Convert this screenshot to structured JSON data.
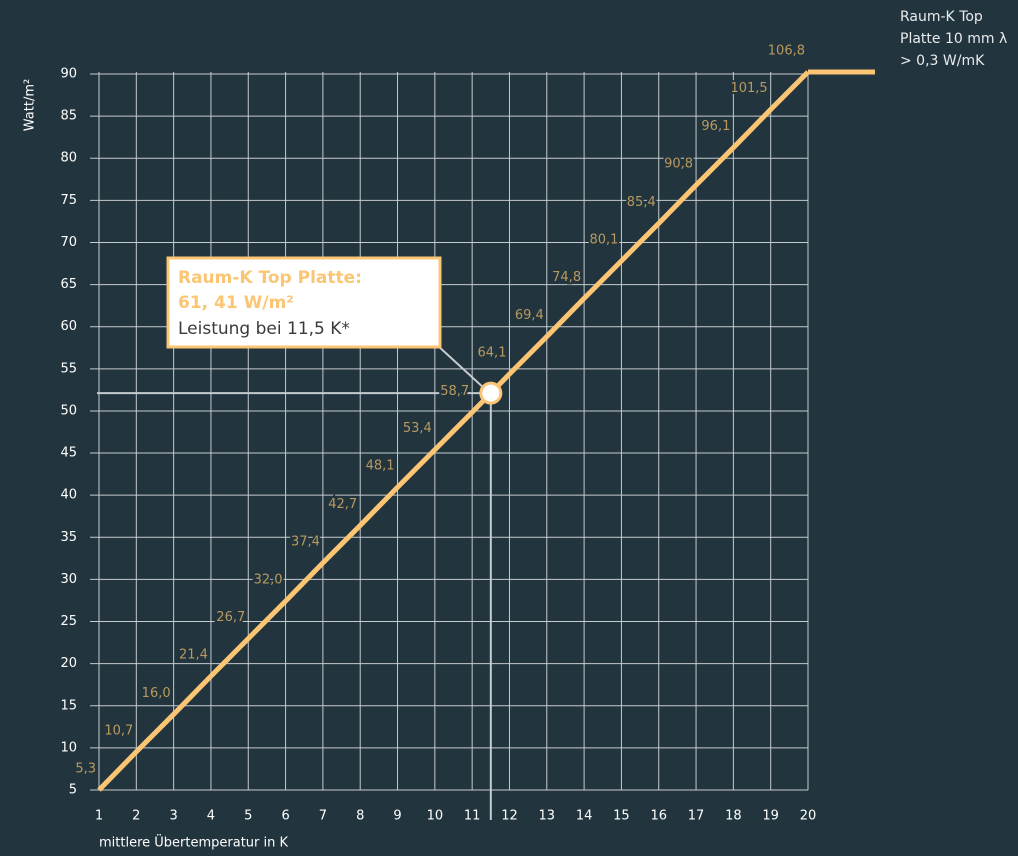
{
  "chart_data": {
    "type": "line",
    "y_label": "Watt/m²",
    "x_label": "mittlere Übertemperatur in K",
    "xlim": [
      1,
      20
    ],
    "xticks": [
      1,
      2,
      3,
      4,
      5,
      6,
      7,
      8,
      9,
      10,
      11,
      12,
      13,
      14,
      15,
      16,
      17,
      18,
      19,
      20
    ],
    "ylim": [
      5,
      90
    ],
    "yticks": [
      5,
      10,
      15,
      20,
      25,
      30,
      35,
      40,
      45,
      50,
      55,
      60,
      65,
      70,
      75,
      80,
      85,
      90
    ],
    "y2lim": [
      5.3,
      106.8
    ],
    "grid": true,
    "x": [
      1,
      2,
      3,
      4,
      5,
      6,
      7,
      8,
      9,
      10,
      11,
      12,
      13,
      14,
      15,
      16,
      17,
      18,
      19,
      20
    ],
    "series": [
      {
        "name": "Raum-K Top Platte 10 mm λ > 0,3 W/mK",
        "color": "#fbc574",
        "axis": "y2",
        "values": [
          5.3,
          10.7,
          16.0,
          21.4,
          26.7,
          32.0,
          37.4,
          42.7,
          48.1,
          53.4,
          58.7,
          64.1,
          69.4,
          74.8,
          80.1,
          85.4,
          90.8,
          96.1,
          101.5,
          106.8
        ],
        "value_labels": [
          "5,3",
          "10,7",
          "16,0",
          "21,4",
          "26,7",
          "32,0",
          "37,4",
          "42,7",
          "48,1",
          "53,4",
          "58,7",
          "64,1",
          "69,4",
          "74,8",
          "80,1",
          "85,4",
          "90,8",
          "96,1",
          "101,5",
          "106,8"
        ]
      }
    ],
    "annotation": {
      "x": 11.5,
      "value": 61.41,
      "title": "Raum-K Top Platte:",
      "value_label": "61, 41 W/m²",
      "text": "Leistung bei 11,5 K*"
    }
  }
}
